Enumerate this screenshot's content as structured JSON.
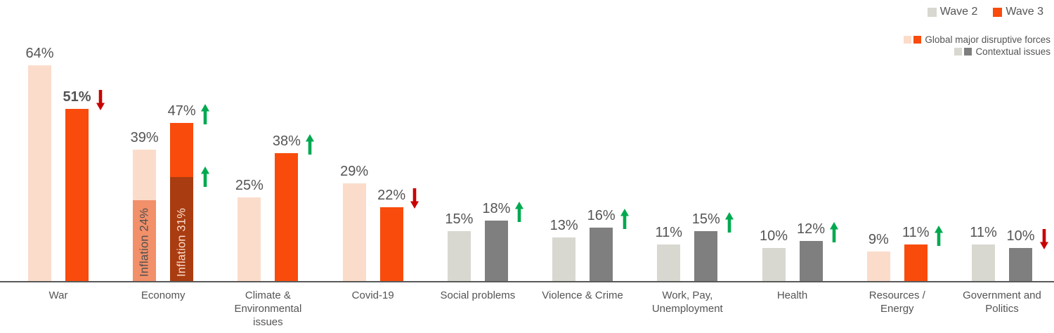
{
  "colors": {
    "disruptive_wave2": "#fbdccb",
    "disruptive_wave3": "#f94b0c",
    "contextual_wave2": "#d8d8d0",
    "contextual_wave3": "#7f7f7f",
    "inflation_wave2_fill": "#f2906a",
    "inflation_wave3_fill": "#a93c10",
    "inflation_wave2_text": "#4f4f4f",
    "inflation_wave3_text": "#fbdccb",
    "up_arrow": "#00a94f",
    "down_arrow": "#c80000",
    "text": "#545454",
    "axis": "#595959"
  },
  "legend": {
    "wave2_label": "Wave 2",
    "wave3_label": "Wave 3",
    "wave2_swatch_color_key": "contextual_wave2",
    "wave3_swatch_color_key": "disruptive_wave3"
  },
  "group_legend": {
    "rows": [
      {
        "label": "Global major disruptive forces",
        "swatch_keys": [
          "disruptive_wave2",
          "disruptive_wave3"
        ]
      },
      {
        "label": "Contextual issues",
        "swatch_keys": [
          "contextual_wave2",
          "contextual_wave3"
        ]
      }
    ]
  },
  "chart_data": {
    "type": "bar",
    "unit": "%",
    "series": [
      "Wave 2",
      "Wave 3"
    ],
    "value_axis_range": [
      0,
      64
    ],
    "gridlines": false,
    "categories": [
      {
        "label": "War",
        "group": "disruptive",
        "wave2": 64,
        "wave3": 51,
        "trend": "down",
        "wave3_label_bold": true
      },
      {
        "label": "Economy",
        "group": "disruptive",
        "wave2": 39,
        "wave3": 47,
        "trend": "up",
        "wave2_overlay": {
          "label": "Inflation 24%",
          "value": 24
        },
        "wave3_overlay": {
          "label": "Inflation 31%",
          "value": 31
        },
        "overlay_trend": "up"
      },
      {
        "label": "Climate &\nEnvironmental\nissues",
        "group": "disruptive",
        "wave2": 25,
        "wave3": 38,
        "trend": "up"
      },
      {
        "label": "Covid-19",
        "group": "disruptive",
        "wave2": 29,
        "wave3": 22,
        "trend": "down"
      },
      {
        "label": "Social problems",
        "group": "contextual",
        "wave2": 15,
        "wave3": 18,
        "trend": "up"
      },
      {
        "label": "Violence & Crime",
        "group": "contextual",
        "wave2": 13,
        "wave3": 16,
        "trend": "up"
      },
      {
        "label": "Work, Pay,\nUnemployment",
        "group": "contextual",
        "wave2": 11,
        "wave3": 15,
        "trend": "up"
      },
      {
        "label": "Health",
        "group": "contextual",
        "wave2": 10,
        "wave3": 12,
        "trend": "up"
      },
      {
        "label": "Resources /\nEnergy",
        "group": "disruptive",
        "wave2": 9,
        "wave3": 11,
        "trend": "up"
      },
      {
        "label": "Government and\nPolitics",
        "group": "contextual",
        "wave2": 11,
        "wave3": 10,
        "trend": "down"
      }
    ]
  }
}
